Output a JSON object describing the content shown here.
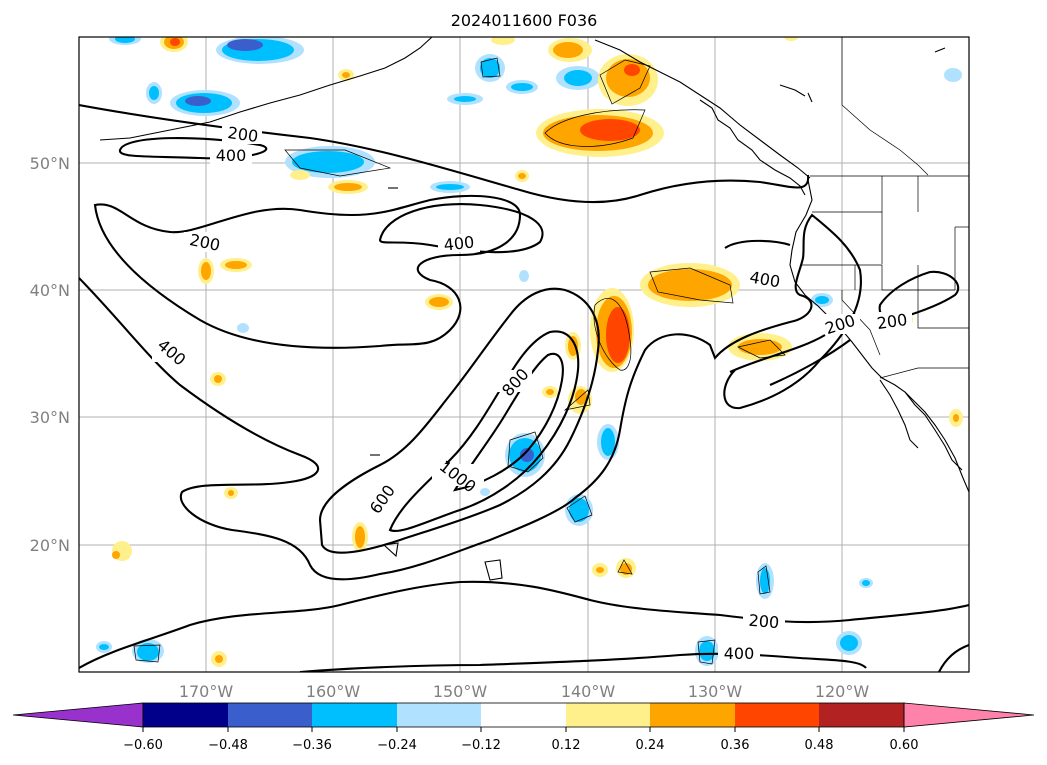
{
  "title": "2024011600 F036",
  "lat_labels": [
    "50°N",
    "40°N",
    "30°N",
    "20°N"
  ],
  "lon_labels": [
    "170°W",
    "160°W",
    "150°W",
    "140°W",
    "130°W",
    "120°W"
  ],
  "contour_labels": {
    "c200a": "200",
    "c400a": "400",
    "c200b": "200",
    "c400b": "400",
    "c400c": "400",
    "c800": "800",
    "c1000": "1000",
    "c600": "600",
    "c400d": "400",
    "c200c": "200",
    "c200d": "200",
    "c200e": "200",
    "c400e": "400"
  },
  "colorbar": {
    "colors": [
      "#9932cc",
      "#00008b",
      "#3a5fcd",
      "#00bfff",
      "#b0e2ff",
      "#ffffff",
      "#fff08c",
      "#ffa500",
      "#ff4500",
      "#b22222",
      "#ff82ab"
    ],
    "tick_labels": [
      "−0.60",
      "−0.48",
      "−0.36",
      "−0.24",
      "−0.12",
      "0.12",
      "0.24",
      "0.36",
      "0.48",
      "0.60"
    ]
  }
}
